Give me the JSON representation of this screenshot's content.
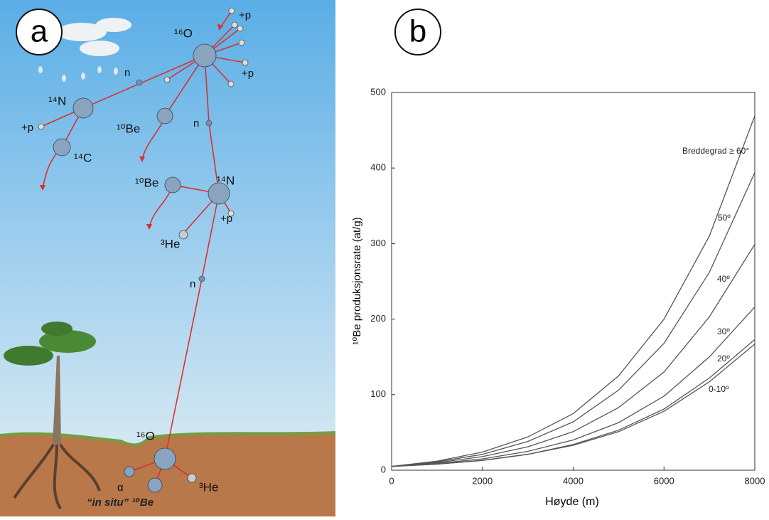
{
  "panel_a": {
    "label": "a",
    "labels": [
      "+p",
      "¹⁶O",
      "+p",
      "n",
      "¹⁴N",
      "+p",
      "¹⁰Be",
      "¹⁴C",
      "n",
      "¹⁰Be",
      "¹⁴N",
      "+p",
      "³He",
      "n",
      "¹⁶O",
      "α",
      "“in situ” ¹⁰Be",
      "³He"
    ]
  },
  "chart_data": {
    "type": "line",
    "label": "b",
    "x_label": "Høyde (m)",
    "y_label": "¹⁰Be produksjonsrate (at/g)",
    "x": [
      0,
      1000,
      2000,
      3000,
      4000,
      5000,
      6000,
      7000,
      8000
    ],
    "series": [
      {
        "name": "Breddegrad  ≥ 60°",
        "color": "#555555",
        "values": [
          5,
          12,
          24,
          44,
          75,
          125,
          200,
          310,
          469
        ]
      },
      {
        "name": "50º",
        "color": "#555555",
        "values": [
          5,
          11,
          21,
          38,
          64,
          106,
          168,
          262,
          394
        ]
      },
      {
        "name": "40º",
        "color": "#555555",
        "values": [
          5,
          10,
          18,
          31,
          51,
          83,
          130,
          203,
          299
        ]
      },
      {
        "name": "30º",
        "color": "#555555",
        "values": [
          5,
          9,
          15,
          25,
          40,
          63,
          98,
          150,
          216
        ]
      },
      {
        "name": "20º",
        "color": "#555555",
        "values": [
          5,
          8,
          13,
          21,
          34,
          53,
          81,
          122,
          173
        ]
      },
      {
        "name": "0-10º",
        "color": "#555555",
        "values": [
          5,
          8,
          13,
          21,
          33,
          51,
          78,
          117,
          167
        ]
      }
    ],
    "xlim": [
      0,
      8000
    ],
    "xticks": [
      0,
      2000,
      4000,
      6000,
      8000
    ],
    "ylim": [
      0,
      500
    ],
    "yticks": [
      0,
      100,
      200,
      300,
      400,
      500
    ]
  }
}
